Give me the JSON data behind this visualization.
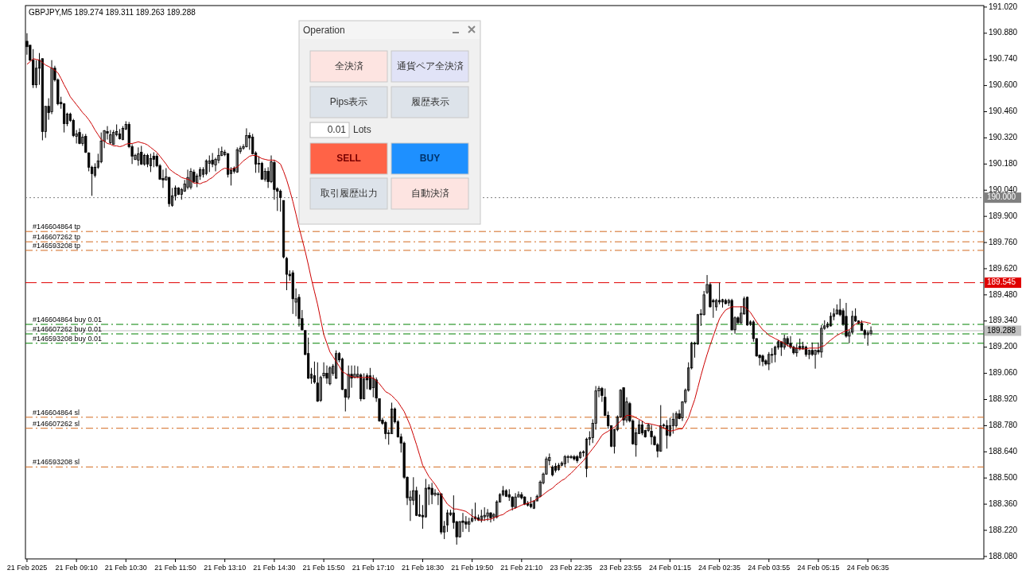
{
  "chart_data": {
    "type": "candlestick",
    "title": "GBPJPY,M5 189.274 189.311 189.263 189.288",
    "categories": [
      "21 Feb 2025",
      null,
      null,
      null,
      null,
      null,
      null,
      null,
      null,
      null,
      null,
      null,
      null,
      null,
      null,
      null,
      "21 Feb 09:10",
      null,
      null,
      null,
      null,
      null,
      null,
      null,
      null,
      null,
      null,
      null,
      null,
      null,
      null,
      null,
      "21 Feb 10:30",
      null,
      null,
      null,
      null,
      null,
      null,
      null,
      null,
      null,
      null,
      null,
      null,
      null,
      null,
      null,
      "21 Feb 11:50",
      null,
      null,
      null,
      null,
      null,
      null,
      null,
      null,
      null,
      null,
      null,
      null,
      null,
      null,
      null,
      "21 Feb 13:10",
      null,
      null,
      null,
      null,
      null,
      null,
      null,
      null,
      null,
      null,
      null,
      null,
      null,
      null,
      null,
      "21 Feb 14:30",
      null,
      null,
      null,
      null,
      null,
      null,
      null,
      null,
      null,
      null,
      null,
      null,
      null,
      null,
      null,
      "21 Feb 15:50",
      null,
      null,
      null,
      null,
      null,
      null,
      null,
      null,
      null,
      null,
      null,
      null,
      null,
      null,
      null,
      "21 Feb 17:10",
      null,
      null,
      null,
      null,
      null,
      null,
      null,
      null,
      null,
      null,
      null,
      null,
      null,
      null,
      null,
      "21 Feb 18:30",
      null,
      null,
      null,
      null,
      null,
      null,
      null,
      null,
      null,
      null,
      null,
      null,
      null,
      null,
      null,
      "21 Feb 19:50",
      null,
      null,
      null,
      null,
      null,
      null,
      null,
      null,
      null,
      null,
      null,
      null,
      null,
      null,
      null,
      "21 Feb 21:10",
      null,
      null,
      null,
      null,
      null,
      null,
      null,
      null,
      null,
      null,
      null,
      null,
      null,
      null,
      null,
      "23 Feb 22:35",
      null,
      null,
      null,
      null,
      null,
      null,
      null,
      null,
      null,
      null,
      null,
      null,
      null,
      null,
      null,
      "23 Feb 23:55",
      null,
      null,
      null,
      null,
      null,
      null,
      null,
      null,
      null,
      null,
      null,
      null,
      null,
      null,
      null,
      "24 Feb 01:15",
      null,
      null,
      null,
      null,
      null,
      null,
      null,
      null,
      null,
      null,
      null,
      null,
      null,
      null,
      null,
      "24 Feb 02:35",
      null,
      null,
      null,
      null,
      null,
      null,
      null,
      null,
      null,
      null,
      null,
      null,
      null,
      null,
      null,
      "24 Feb 03:55",
      null,
      null,
      null,
      null,
      null,
      null,
      null,
      null,
      null,
      null,
      null,
      null,
      null,
      null,
      null,
      "24 Feb 05:15",
      null,
      null,
      null,
      null,
      null,
      null,
      null,
      null,
      null,
      null,
      null,
      null,
      null,
      null,
      null,
      "24 Feb 06:35",
      null
    ],
    "ohlc": [
      [
        190.837,
        190.88,
        190.765,
        190.808
      ],
      [
        190.816,
        190.816,
        190.731,
        190.736
      ],
      [
        190.736,
        190.795,
        190.587,
        190.604
      ],
      [
        190.604,
        190.736,
        190.587,
        190.693
      ],
      [
        190.693,
        190.774,
        190.604,
        190.736
      ],
      [
        190.744,
        190.744,
        190.307,
        190.354
      ],
      [
        190.354,
        190.489,
        190.32,
        190.489
      ],
      [
        190.489,
        190.532,
        190.417,
        190.455
      ],
      [
        190.46,
        190.736,
        190.447,
        190.693
      ],
      [
        190.693,
        190.706,
        190.621,
        190.63
      ],
      [
        190.63,
        190.638,
        190.494,
        190.502
      ],
      [
        190.51,
        190.54,
        190.476,
        190.502
      ],
      [
        190.502,
        190.506,
        190.349,
        190.396
      ],
      [
        190.396,
        190.455,
        190.383,
        190.447
      ],
      [
        190.447,
        190.455,
        190.405,
        190.413
      ],
      [
        190.413,
        190.422,
        190.324,
        190.332
      ],
      [
        190.328,
        190.362,
        190.29,
        190.341
      ],
      [
        190.349,
        190.371,
        190.286,
        190.29
      ],
      [
        190.29,
        190.341,
        190.277,
        190.324
      ],
      [
        190.328,
        190.341,
        190.239,
        190.243
      ],
      [
        190.239,
        190.243,
        190.141,
        190.163
      ],
      [
        190.163,
        190.171,
        190.01,
        190.129
      ],
      [
        190.12,
        190.184,
        190.108,
        190.163
      ],
      [
        190.163,
        190.235,
        190.154,
        190.197
      ],
      [
        190.192,
        190.349,
        190.184,
        190.303
      ],
      [
        190.303,
        190.362,
        190.265,
        190.358
      ],
      [
        190.354,
        190.383,
        190.311,
        190.345
      ],
      [
        190.294,
        190.362,
        190.286,
        190.337
      ],
      [
        190.286,
        190.362,
        190.282,
        190.349
      ],
      [
        190.337,
        190.392,
        190.328,
        190.354
      ],
      [
        190.341,
        190.367,
        190.311,
        190.315
      ],
      [
        190.311,
        190.383,
        190.307,
        190.371
      ],
      [
        190.367,
        190.409,
        190.362,
        190.392
      ],
      [
        190.392,
        190.405,
        190.265,
        190.273
      ],
      [
        190.273,
        190.286,
        190.18,
        190.222
      ],
      [
        190.205,
        190.235,
        190.201,
        190.226
      ],
      [
        190.201,
        190.269,
        190.171,
        190.235
      ],
      [
        190.243,
        190.277,
        190.175,
        190.18
      ],
      [
        190.18,
        190.235,
        190.171,
        190.226
      ],
      [
        190.226,
        190.235,
        190.163,
        190.18
      ],
      [
        190.171,
        190.235,
        190.137,
        190.209
      ],
      [
        190.222,
        190.243,
        190.163,
        190.205
      ],
      [
        190.222,
        190.235,
        190.163,
        190.171
      ],
      [
        190.171,
        190.18,
        190.095,
        190.099
      ],
      [
        190.103,
        190.15,
        190.052,
        190.095
      ],
      [
        190.095,
        190.158,
        190.091,
        190.112
      ],
      [
        190.108,
        190.112,
        189.951,
        189.968
      ],
      [
        189.959,
        190.052,
        189.951,
        190.01
      ],
      [
        190.01,
        190.065,
        189.985,
        190.052
      ],
      [
        190.052,
        190.056,
        190.014,
        190.018
      ],
      [
        190.018,
        190.052,
        189.989,
        190.044
      ],
      [
        190.035,
        190.095,
        190.031,
        190.073
      ],
      [
        190.056,
        190.15,
        190.044,
        190.108
      ],
      [
        190.056,
        190.158,
        190.044,
        190.141
      ],
      [
        190.137,
        190.15,
        190.078,
        190.086
      ],
      [
        190.082,
        190.129,
        190.056,
        190.116
      ],
      [
        190.116,
        190.163,
        190.095,
        190.15
      ],
      [
        190.125,
        190.163,
        190.108,
        190.15
      ],
      [
        190.129,
        190.205,
        190.12,
        190.197
      ],
      [
        190.184,
        190.226,
        190.137,
        190.197
      ],
      [
        190.201,
        190.239,
        190.163,
        190.18
      ],
      [
        190.175,
        190.214,
        190.141,
        190.205
      ],
      [
        190.201,
        190.265,
        190.184,
        190.226
      ],
      [
        190.226,
        190.273,
        190.222,
        190.248
      ],
      [
        190.231,
        190.256,
        190.222,
        190.243
      ],
      [
        190.235,
        190.239,
        190.108,
        190.125
      ],
      [
        190.129,
        190.163,
        190.065,
        190.146
      ],
      [
        190.158,
        190.167,
        190.129,
        190.141
      ],
      [
        190.137,
        190.269,
        190.133,
        190.256
      ],
      [
        190.248,
        190.277,
        190.235,
        190.265
      ],
      [
        190.265,
        190.286,
        190.256,
        190.273
      ],
      [
        190.273,
        190.371,
        190.269,
        190.332
      ],
      [
        190.332,
        190.349,
        190.256,
        190.32
      ],
      [
        190.324,
        190.341,
        190.231,
        190.235
      ],
      [
        190.239,
        190.248,
        190.133,
        190.18
      ],
      [
        190.184,
        190.222,
        190.133,
        190.18
      ],
      [
        190.184,
        190.192,
        190.095,
        190.099
      ],
      [
        190.099,
        190.158,
        190.086,
        190.141
      ],
      [
        190.141,
        190.163,
        190.052,
        190.086
      ],
      [
        190.086,
        190.226,
        190.078,
        190.192
      ],
      [
        190.188,
        190.201,
        189.989,
        190.044
      ],
      [
        190.048,
        190.056,
        189.929,
        190.035
      ],
      [
        190.035,
        190.044,
        189.925,
        190.001
      ],
      [
        189.985,
        189.985,
        189.675,
        189.683
      ],
      [
        189.675,
        189.683,
        189.505,
        189.59
      ],
      [
        189.59,
        189.611,
        189.556,
        189.582
      ],
      [
        189.598,
        189.611,
        189.378,
        189.459
      ],
      [
        189.441,
        189.514,
        189.365,
        189.459
      ],
      [
        189.467,
        189.484,
        189.31,
        189.353
      ],
      [
        189.353,
        189.399,
        189.289,
        189.293
      ],
      [
        189.289,
        189.289,
        189.157,
        189.161
      ],
      [
        189.166,
        189.251,
        189.03,
        189.034
      ],
      [
        189.034,
        189.089,
        189.004,
        189.055
      ],
      [
        189.047,
        189.123,
        189.004,
        189.013
      ],
      [
        189.008,
        189.119,
        188.907,
        188.911
      ],
      [
        188.915,
        189.047,
        188.907,
        189.038
      ],
      [
        189.047,
        189.119,
        189.034,
        189.06
      ],
      [
        189.06,
        189.102,
        189.004,
        189.034
      ],
      [
        189.004,
        189.098,
        188.996,
        189.089
      ],
      [
        189.06,
        189.11,
        189.047,
        189.098
      ],
      [
        189.034,
        189.183,
        189.03,
        189.166
      ],
      [
        189.166,
        189.174,
        189.119,
        189.132
      ],
      [
        189.136,
        189.144,
        188.97,
        188.974
      ],
      [
        188.974,
        188.974,
        188.856,
        188.932
      ],
      [
        188.932,
        189.102,
        188.92,
        189.055
      ],
      [
        189.055,
        189.102,
        188.983,
        189.034
      ],
      [
        189.038,
        189.102,
        189.034,
        189.055
      ],
      [
        189.042,
        189.098,
        189.034,
        189.055
      ],
      [
        189.051,
        189.06,
        188.911,
        188.924
      ],
      [
        188.924,
        189.06,
        188.92,
        189.03
      ],
      [
        189.047,
        189.06,
        188.975,
        189.025
      ],
      [
        189.047,
        189.089,
        188.97,
        188.975
      ],
      [
        188.983,
        189.051,
        188.932,
        189.034
      ],
      [
        189.025,
        189.038,
        188.907,
        188.928
      ],
      [
        188.924,
        188.924,
        188.801,
        188.805
      ],
      [
        188.81,
        188.822,
        188.784,
        188.792
      ],
      [
        188.797,
        188.805,
        188.708,
        188.737
      ],
      [
        188.737,
        188.758,
        188.678,
        188.741
      ],
      [
        188.737,
        188.903,
        188.737,
        188.869
      ],
      [
        188.869,
        188.877,
        188.792,
        188.801
      ],
      [
        188.801,
        188.81,
        188.716,
        188.72
      ],
      [
        188.72,
        188.737,
        188.636,
        188.687
      ],
      [
        188.687,
        188.695,
        188.495,
        188.504
      ],
      [
        188.504,
        188.508,
        188.355,
        188.394
      ],
      [
        188.381,
        188.432,
        188.27,
        188.398
      ],
      [
        188.381,
        188.504,
        188.355,
        188.432
      ],
      [
        188.432,
        188.453,
        188.296,
        188.3
      ],
      [
        188.304,
        188.411,
        188.292,
        188.296
      ],
      [
        188.3,
        188.355,
        188.228,
        188.292
      ],
      [
        188.292,
        188.495,
        188.287,
        188.445
      ],
      [
        188.449,
        188.466,
        188.355,
        188.441
      ],
      [
        188.445,
        188.474,
        188.36,
        188.411
      ],
      [
        188.411,
        188.44,
        188.402,
        188.419
      ],
      [
        188.415,
        188.424,
        188.355,
        188.411
      ],
      [
        188.415,
        188.419,
        188.198,
        188.211
      ],
      [
        188.211,
        188.27,
        188.173,
        188.241
      ],
      [
        188.249,
        188.33,
        188.211,
        188.313
      ],
      [
        188.304,
        188.33,
        188.296,
        188.313
      ],
      [
        188.313,
        188.407,
        188.228,
        188.262
      ],
      [
        188.266,
        188.27,
        188.143,
        188.185
      ],
      [
        188.185,
        188.27,
        188.181,
        188.266
      ],
      [
        188.27,
        188.313,
        188.211,
        188.262
      ],
      [
        188.266,
        188.296,
        188.228,
        188.253
      ],
      [
        188.253,
        188.287,
        188.211,
        188.266
      ],
      [
        188.27,
        188.334,
        188.262,
        188.283
      ],
      [
        188.292,
        188.368,
        188.27,
        188.283
      ],
      [
        188.287,
        188.304,
        188.27,
        188.275
      ],
      [
        188.275,
        188.33,
        188.262,
        188.296
      ],
      [
        188.292,
        188.343,
        188.27,
        188.3
      ],
      [
        188.296,
        188.334,
        188.27,
        188.313
      ],
      [
        188.313,
        188.317,
        188.262,
        188.287
      ],
      [
        188.292,
        188.313,
        188.27,
        188.304
      ],
      [
        188.292,
        188.381,
        188.283,
        188.372
      ],
      [
        188.372,
        188.419,
        188.368,
        188.411
      ],
      [
        188.411,
        188.457,
        188.402,
        188.432
      ],
      [
        188.432,
        188.44,
        188.398,
        188.402
      ],
      [
        188.411,
        188.44,
        188.377,
        188.398
      ],
      [
        188.398,
        188.402,
        188.326,
        188.347
      ],
      [
        188.343,
        188.419,
        188.338,
        188.398
      ],
      [
        188.398,
        188.428,
        188.398,
        188.411
      ],
      [
        188.411,
        188.424,
        188.385,
        188.394
      ],
      [
        188.398,
        188.402,
        188.355,
        188.36
      ],
      [
        188.364,
        188.377,
        188.347,
        188.355
      ],
      [
        188.36,
        188.398,
        188.338,
        188.347
      ],
      [
        188.338,
        188.381,
        188.334,
        188.377
      ],
      [
        188.377,
        188.411,
        188.377,
        188.402
      ],
      [
        188.402,
        188.487,
        188.398,
        188.478
      ],
      [
        188.474,
        188.529,
        188.466,
        188.521
      ],
      [
        188.521,
        188.614,
        188.517,
        188.602
      ],
      [
        188.593,
        188.631,
        188.568,
        188.61
      ],
      [
        188.559,
        188.568,
        188.508,
        188.517
      ],
      [
        188.563,
        188.58,
        188.529,
        188.542
      ],
      [
        188.546,
        188.58,
        188.538,
        188.568
      ],
      [
        188.568,
        188.589,
        188.563,
        188.58
      ],
      [
        188.576,
        188.623,
        188.559,
        188.614
      ],
      [
        188.61,
        188.623,
        188.58,
        188.614
      ],
      [
        188.614,
        188.623,
        188.602,
        188.61
      ],
      [
        188.614,
        188.623,
        188.593,
        188.602
      ],
      [
        188.614,
        188.623,
        188.58,
        188.593
      ],
      [
        188.61,
        188.644,
        188.602,
        188.636
      ],
      [
        188.64,
        188.648,
        188.614,
        188.636
      ],
      [
        188.551,
        188.716,
        188.504,
        188.708
      ],
      [
        188.708,
        188.75,
        188.674,
        188.716
      ],
      [
        188.716,
        188.814,
        188.687,
        188.792
      ],
      [
        188.792,
        188.992,
        188.758,
        188.966
      ],
      [
        188.966,
        188.992,
        188.932,
        188.979
      ],
      [
        188.979,
        188.987,
        188.907,
        188.941
      ],
      [
        188.932,
        188.979,
        188.831,
        188.835
      ],
      [
        188.835,
        188.856,
        188.763,
        188.78
      ],
      [
        188.78,
        188.78,
        188.665,
        188.67
      ],
      [
        188.67,
        188.763,
        188.631,
        188.758
      ],
      [
        188.758,
        188.835,
        188.75,
        188.826
      ],
      [
        188.826,
        188.975,
        188.822,
        188.97
      ],
      [
        188.983,
        188.983,
        188.78,
        188.81
      ],
      [
        188.81,
        188.932,
        188.797,
        188.907
      ],
      [
        188.898,
        188.907,
        188.797,
        188.805
      ],
      [
        188.805,
        188.814,
        188.678,
        188.683
      ],
      [
        188.678,
        188.763,
        188.614,
        188.741
      ],
      [
        188.737,
        188.81,
        188.737,
        188.784
      ],
      [
        188.784,
        188.805,
        188.729,
        188.741
      ],
      [
        188.754,
        188.758,
        188.716,
        188.72
      ],
      [
        188.754,
        188.792,
        188.746,
        188.784
      ],
      [
        188.75,
        188.784,
        188.678,
        188.72
      ],
      [
        188.72,
        188.729,
        188.674,
        188.678
      ],
      [
        188.678,
        188.687,
        188.61,
        188.644
      ],
      [
        188.644,
        188.89,
        188.64,
        188.78
      ],
      [
        188.78,
        188.792,
        188.763,
        188.784
      ],
      [
        188.78,
        188.81,
        188.657,
        188.729
      ],
      [
        188.729,
        188.822,
        188.72,
        188.78
      ],
      [
        188.78,
        188.848,
        188.737,
        188.814
      ],
      [
        188.78,
        188.856,
        188.771,
        188.843
      ],
      [
        188.843,
        188.865,
        188.814,
        188.818
      ],
      [
        188.822,
        188.911,
        188.805,
        188.907
      ],
      [
        188.907,
        188.979,
        188.898,
        188.97
      ],
      [
        188.97,
        189.119,
        188.962,
        189.089
      ],
      [
        189.089,
        189.229,
        189.081,
        189.221
      ],
      [
        189.221,
        189.229,
        189.144,
        189.217
      ],
      [
        189.217,
        189.378,
        189.212,
        189.374
      ],
      [
        189.378,
        189.403,
        189.314,
        189.374
      ],
      [
        189.374,
        189.501,
        189.37,
        189.48
      ],
      [
        189.493,
        189.586,
        189.484,
        189.535
      ],
      [
        189.535,
        189.544,
        189.412,
        189.416
      ],
      [
        189.45,
        189.459,
        189.357,
        189.442
      ],
      [
        189.416,
        189.459,
        189.395,
        189.45
      ],
      [
        189.45,
        189.544,
        189.429,
        189.442
      ],
      [
        189.442,
        189.459,
        189.412,
        189.454
      ],
      [
        189.45,
        189.459,
        189.429,
        189.433
      ],
      [
        189.437,
        189.459,
        189.42,
        189.45
      ],
      [
        189.45,
        189.459,
        189.289,
        189.293
      ],
      [
        189.293,
        189.365,
        189.272,
        189.357
      ],
      [
        189.357,
        189.365,
        189.323,
        189.331
      ],
      [
        189.331,
        189.42,
        189.323,
        189.382
      ],
      [
        189.378,
        189.471,
        189.374,
        189.459
      ],
      [
        189.467,
        189.471,
        189.314,
        189.319
      ],
      [
        189.323,
        189.344,
        189.314,
        189.335
      ],
      [
        189.335,
        189.344,
        189.229,
        189.246
      ],
      [
        189.246,
        189.246,
        189.149,
        189.153
      ],
      [
        189.157,
        189.161,
        189.102,
        189.144
      ],
      [
        189.153,
        189.161,
        189.098,
        189.123
      ],
      [
        189.127,
        189.136,
        189.102,
        189.11
      ],
      [
        189.11,
        189.174,
        189.077,
        189.161
      ],
      [
        189.161,
        189.195,
        189.115,
        189.157
      ],
      [
        189.161,
        189.208,
        189.119,
        189.2
      ],
      [
        189.2,
        189.238,
        189.187,
        189.229
      ],
      [
        189.229,
        189.229,
        189.153,
        189.2
      ],
      [
        189.2,
        189.267,
        189.187,
        189.246
      ],
      [
        189.246,
        189.259,
        189.204,
        189.217
      ],
      [
        189.221,
        189.259,
        189.191,
        189.2
      ],
      [
        189.2,
        189.208,
        189.161,
        189.17
      ],
      [
        189.17,
        189.217,
        189.149,
        189.195
      ],
      [
        189.204,
        189.246,
        189.183,
        189.191
      ],
      [
        189.191,
        189.229,
        189.187,
        189.204
      ],
      [
        189.2,
        189.208,
        189.149,
        189.161
      ],
      [
        189.161,
        189.187,
        189.136,
        189.183
      ],
      [
        189.183,
        189.225,
        189.153,
        189.161
      ],
      [
        189.161,
        189.187,
        189.085,
        189.183
      ],
      [
        189.183,
        189.225,
        189.161,
        189.174
      ],
      [
        189.174,
        189.318,
        189.144,
        189.301
      ],
      [
        189.301,
        189.344,
        189.293,
        189.314
      ],
      [
        189.31,
        189.335,
        189.301,
        189.323
      ],
      [
        189.314,
        189.386,
        189.31,
        189.365
      ],
      [
        189.365,
        189.408,
        189.344,
        189.378
      ],
      [
        189.378,
        189.429,
        189.374,
        189.399
      ],
      [
        189.399,
        189.459,
        189.365,
        189.374
      ],
      [
        189.395,
        189.408,
        189.314,
        189.323
      ],
      [
        189.365,
        189.437,
        189.251,
        189.259
      ],
      [
        189.259,
        189.293,
        189.221,
        189.28
      ],
      [
        189.28,
        189.395,
        189.272,
        189.365
      ],
      [
        189.365,
        189.408,
        189.335,
        189.34
      ],
      [
        189.34,
        189.344,
        189.323,
        189.327
      ],
      [
        189.327,
        189.344,
        189.289,
        189.289
      ],
      [
        189.289,
        189.297,
        189.246,
        189.267
      ],
      [
        189.267,
        189.289,
        189.208,
        189.276
      ],
      [
        189.274,
        189.311,
        189.263,
        189.288
      ]
    ],
    "series": [
      {
        "type": "line",
        "color": "#cc0000",
        "values": [
          190.714,
          190.727,
          190.744,
          190.74,
          190.736,
          190.723,
          190.71,
          190.702,
          190.693,
          190.681,
          190.668,
          190.638,
          190.604,
          190.574,
          190.54,
          190.519,
          190.498,
          190.477,
          190.455,
          190.438,
          190.417,
          190.392,
          190.362,
          190.337,
          190.311,
          190.303,
          190.29,
          190.286,
          190.277,
          190.277,
          190.273,
          190.277,
          190.286,
          190.29,
          190.29,
          190.294,
          190.299,
          190.294,
          190.29,
          190.282,
          190.269,
          190.256,
          190.243,
          190.222,
          190.201,
          190.18,
          190.154,
          190.141,
          190.129,
          190.12,
          190.108,
          190.103,
          190.099,
          190.091,
          190.078,
          190.078,
          190.074,
          190.082,
          190.086,
          190.099,
          190.108,
          190.125,
          190.137,
          190.15,
          190.158,
          190.154,
          190.15,
          190.158,
          190.163,
          190.18,
          190.197,
          190.209,
          190.222,
          190.226,
          190.226,
          190.218,
          190.209,
          190.205,
          190.201,
          190.201,
          190.201,
          190.192,
          190.18,
          190.141,
          190.095,
          190.04,
          189.98,
          189.912,
          189.84,
          189.777,
          189.713,
          189.641,
          189.565,
          189.497,
          189.429,
          189.348,
          189.268,
          189.221,
          189.174,
          189.149,
          189.123,
          189.098,
          189.068,
          189.06,
          189.047,
          189.043,
          189.038,
          189.038,
          189.038,
          189.038,
          189.038,
          189.038,
          189.034,
          189.021,
          189.004,
          188.983,
          188.962,
          188.953,
          188.941,
          188.924,
          188.907,
          188.881,
          188.856,
          188.818,
          188.78,
          188.729,
          188.678,
          188.623,
          188.568,
          188.538,
          188.508,
          188.487,
          188.466,
          188.44,
          188.411,
          188.385,
          188.36,
          188.347,
          188.334,
          188.334,
          188.33,
          188.326,
          188.321,
          188.309,
          188.296,
          188.287,
          188.275,
          188.275,
          188.275,
          188.279,
          188.279,
          188.287,
          188.292,
          188.3,
          188.304,
          188.317,
          188.326,
          188.334,
          188.338,
          188.347,
          188.355,
          188.36,
          188.364,
          188.372,
          188.377,
          188.389,
          188.398,
          188.411,
          188.424,
          188.436,
          188.445,
          188.462,
          188.474,
          188.487,
          188.495,
          188.512,
          188.525,
          188.542,
          188.559,
          188.576,
          188.593,
          188.614,
          188.636,
          188.657,
          188.678,
          188.703,
          188.729,
          188.741,
          188.75,
          188.763,
          188.771,
          188.788,
          188.805,
          188.822,
          188.835,
          188.835,
          188.831,
          188.822,
          188.814,
          188.805,
          188.792,
          188.792,
          188.788,
          188.784,
          188.78,
          188.775,
          188.767,
          188.758,
          188.75,
          188.754,
          188.758,
          188.763,
          188.763,
          188.792,
          188.822,
          188.873,
          188.92,
          188.983,
          189.047,
          189.106,
          189.161,
          189.212,
          189.259,
          189.306,
          189.352,
          189.378,
          189.399,
          189.408,
          189.416,
          189.416,
          189.416,
          189.416,
          189.416,
          189.403,
          189.386,
          189.361,
          189.335,
          189.314,
          189.293,
          189.28,
          189.263,
          189.255,
          189.246,
          189.238,
          189.229,
          189.221,
          189.208,
          189.204,
          189.195,
          189.195,
          189.191,
          189.191,
          189.191,
          189.195,
          189.195,
          189.195,
          189.195,
          189.204,
          189.208,
          189.225,
          189.238,
          189.251,
          189.263,
          189.272,
          189.28,
          189.289,
          189.293,
          189.31,
          189.323,
          189.331,
          189.335,
          189.335,
          189.331,
          189.327
        ]
      }
    ],
    "ylim": [
      188.067,
      191.028
    ],
    "yticks": [
      {
        "value": 191.02,
        "label": "191.020"
      },
      {
        "value": 190.88,
        "label": "190.880"
      },
      {
        "value": 190.74,
        "label": "190.740"
      },
      {
        "value": 190.6,
        "label": "190.600"
      },
      {
        "value": 190.46,
        "label": "190.460"
      },
      {
        "value": 190.32,
        "label": "190.320"
      },
      {
        "value": 190.18,
        "label": "190.180"
      },
      {
        "value": 190.04,
        "label": "190.040"
      },
      {
        "value": 189.9,
        "label": "189.900"
      },
      {
        "value": 189.76,
        "label": "189.760"
      },
      {
        "value": 189.62,
        "label": "189.620"
      },
      {
        "value": 189.48,
        "label": "189.480"
      },
      {
        "value": 189.34,
        "label": "189.340"
      },
      {
        "value": 189.2,
        "label": "189.200"
      },
      {
        "value": 189.06,
        "label": "189.060"
      },
      {
        "value": 188.92,
        "label": "188.920"
      },
      {
        "value": 188.78,
        "label": "188.780"
      },
      {
        "value": 188.64,
        "label": "188.640"
      },
      {
        "value": 188.5,
        "label": "188.500"
      },
      {
        "value": 188.36,
        "label": "188.360"
      },
      {
        "value": 188.22,
        "label": "188.220"
      },
      {
        "value": 188.08,
        "label": "188.080"
      }
    ],
    "ref_lines": [
      {
        "axis": "y",
        "value": 190.0,
        "label": "190.000",
        "color": "#808080",
        "line_style": "dotted"
      },
      {
        "axis": "y",
        "value": 189.819,
        "label": "#146604864 tp",
        "color": "#d2691e",
        "line_style": "dashdot"
      },
      {
        "axis": "y",
        "value": 189.764,
        "label": "#146607262 tp",
        "color": "#d2691e",
        "line_style": "dashdot"
      },
      {
        "axis": "y",
        "value": 189.718,
        "label": "#146593208 tp",
        "color": "#d2691e",
        "line_style": "dashdot"
      },
      {
        "axis": "y",
        "value": 189.545,
        "label": "189.545",
        "color": "#e00000",
        "line_style": "dashed"
      },
      {
        "axis": "y",
        "value": 189.322,
        "label": "#146604864 buy 0.01",
        "color": "#008000",
        "line_style": "dashdot"
      },
      {
        "axis": "y",
        "value": 189.288,
        "label": "189.288",
        "color": "#c0c0c0",
        "line_style": "solid"
      },
      {
        "axis": "y",
        "value": 189.271,
        "label": "#146607262 buy 0.01",
        "color": "#008000",
        "line_style": "dashdot"
      },
      {
        "axis": "y",
        "value": 189.221,
        "label": "#146593208 buy 0.01",
        "color": "#008000",
        "line_style": "dashdot"
      },
      {
        "axis": "y",
        "value": 188.825,
        "label": "#146604864 sl",
        "color": "#d2691e",
        "line_style": "dashdot"
      },
      {
        "axis": "y",
        "value": 188.766,
        "label": "#146607262 sl",
        "color": "#d2691e",
        "line_style": "dashdot"
      },
      {
        "axis": "y",
        "value": 188.559,
        "label": "#146593208 sl",
        "color": "#d2691e",
        "line_style": "dashdot"
      }
    ],
    "annotations": [
      "Operation",
      "全決済",
      "通貨ペア全決済",
      "Pips表示",
      "履歴表示",
      "0.01",
      "Lots",
      "SELL",
      "BUY",
      "取引履歴出力",
      "自動決済"
    ]
  }
}
